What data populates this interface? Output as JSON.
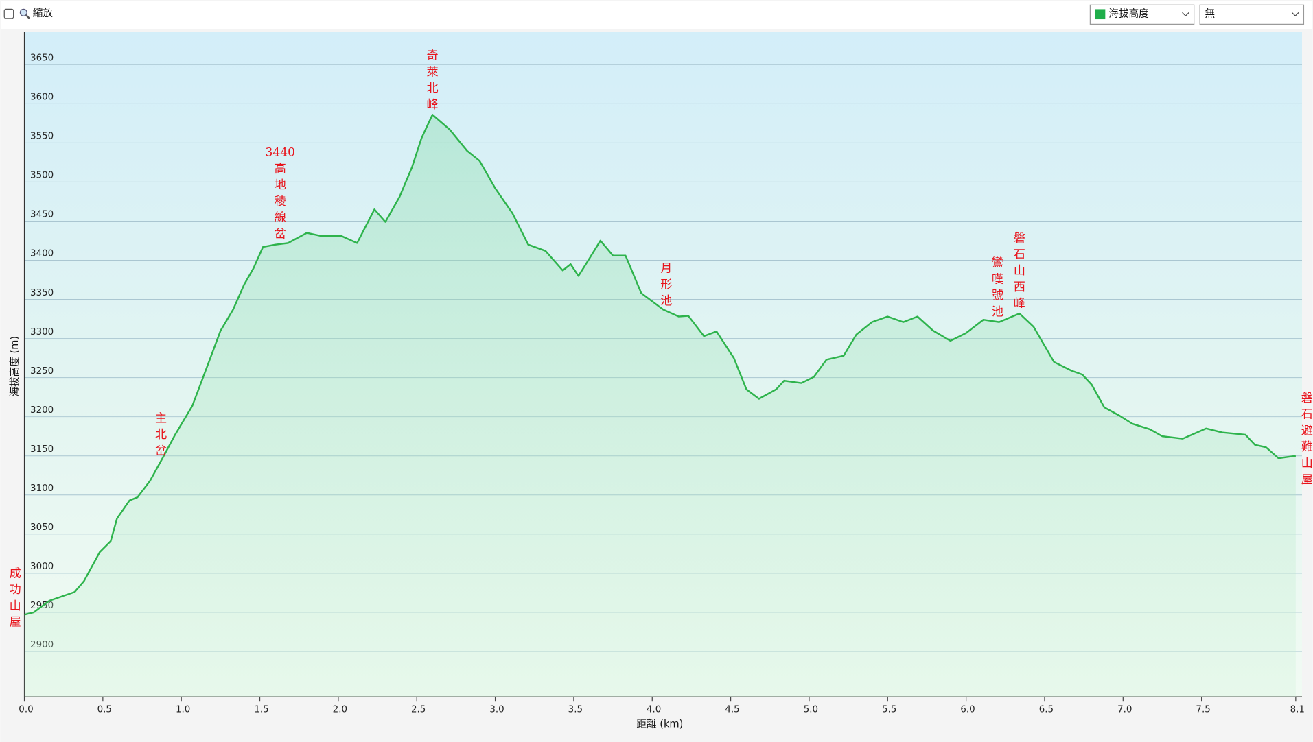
{
  "controls": {
    "zoom_label": "縮放",
    "series_select": "海拔高度",
    "second_select": "無"
  },
  "chart_data": {
    "type": "line",
    "xlabel": "距離 (km)",
    "ylabel": "海拔高度 (m)",
    "color": "#2eb34c",
    "x": [
      0,
      0.06,
      0.16,
      0.32,
      0.38,
      0.48,
      0.55,
      0.59,
      0.67,
      0.72,
      0.8,
      0.88,
      0.96,
      1.07,
      1.17,
      1.25,
      1.33,
      1.4,
      1.46,
      1.52,
      1.6,
      1.68,
      1.8,
      1.89,
      2.02,
      2.12,
      2.23,
      2.3,
      2.39,
      2.47,
      2.53,
      2.6,
      2.71,
      2.82,
      2.9,
      3.0,
      3.11,
      3.21,
      3.32,
      3.43,
      3.48,
      3.53,
      3.59,
      3.67,
      3.75,
      3.83,
      3.93,
      4.07,
      4.17,
      4.23,
      4.33,
      4.41,
      4.52,
      4.6,
      4.68,
      4.79,
      4.84,
      4.95,
      5.03,
      5.11,
      5.22,
      5.3,
      5.4,
      5.5,
      5.6,
      5.69,
      5.79,
      5.9,
      6.0,
      6.11,
      6.21,
      6.34,
      6.43,
      6.56,
      6.67,
      6.74,
      6.8,
      6.88,
      6.98,
      7.06,
      7.17,
      7.25,
      7.38,
      7.53,
      7.63,
      7.78,
      7.84,
      7.91,
      7.99,
      8.1
    ],
    "values": [
      2947,
      2950,
      2965,
      2976,
      2990,
      3027,
      3041,
      3070,
      3093,
      3097,
      3118,
      3147,
      3177,
      3214,
      3267,
      3310,
      3337,
      3369,
      3390,
      3417,
      3420,
      3422,
      3435,
      3431,
      3431,
      3422,
      3465,
      3449,
      3481,
      3519,
      3556,
      3586,
      3567,
      3540,
      3527,
      3492,
      3460,
      3420,
      3412,
      3387,
      3395,
      3380,
      3399,
      3425,
      3406,
      3406,
      3358,
      3337,
      3328,
      3329,
      3303,
      3309,
      3275,
      3235,
      3223,
      3235,
      3246,
      3243,
      3251,
      3273,
      3278,
      3305,
      3321,
      3328,
      3321,
      3328,
      3310,
      3297,
      3307,
      3324,
      3321,
      3332,
      3315,
      3270,
      3259,
      3254,
      3241,
      3212,
      3201,
      3191,
      3184,
      3175,
      3172,
      3185,
      3180,
      3177,
      3164,
      3161,
      3147,
      3150
    ],
    "xlim": [
      0,
      8.14
    ],
    "ylim": [
      2842,
      3692
    ],
    "yticks": [
      2900,
      2950,
      3000,
      3050,
      3100,
      3150,
      3200,
      3250,
      3300,
      3350,
      3400,
      3450,
      3500,
      3550,
      3600,
      3650
    ],
    "xticks": [
      {
        "value": 0,
        "label": "0.0"
      },
      {
        "value": 0.5,
        "label": "0.5"
      },
      {
        "value": 1,
        "label": "1.0"
      },
      {
        "value": 1.5,
        "label": "1.5"
      },
      {
        "value": 2,
        "label": "2.0"
      },
      {
        "value": 2.5,
        "label": "2.5"
      },
      {
        "value": 3,
        "label": "3.0"
      },
      {
        "value": 3.5,
        "label": "3.5"
      },
      {
        "value": 4,
        "label": "4.0"
      },
      {
        "value": 4.5,
        "label": "4.5"
      },
      {
        "value": 5,
        "label": "5.0"
      },
      {
        "value": 5.5,
        "label": "5.5"
      },
      {
        "value": 6,
        "label": "6.0"
      },
      {
        "value": 6.5,
        "label": "6.5"
      },
      {
        "value": 7,
        "label": "7.0"
      },
      {
        "value": 7.5,
        "label": "7.5"
      },
      {
        "value": 8.1,
        "label": "8.1"
      }
    ],
    "grid": true,
    "annotations": [
      {
        "text": "成功山屋",
        "x": 0
      },
      {
        "text": "主北岔",
        "x": 0.87
      },
      {
        "text": "3440高地稜線岔",
        "x": 1.63
      },
      {
        "text": "奇萊北峰",
        "x": 2.6
      },
      {
        "text": "月形池",
        "x": 4.09
      },
      {
        "text": "鸞嘆號池",
        "x": 6.2
      },
      {
        "text": "磐石山西峰",
        "x": 6.34
      },
      {
        "text": "磐石避難山屋",
        "x": 8.14
      }
    ]
  }
}
